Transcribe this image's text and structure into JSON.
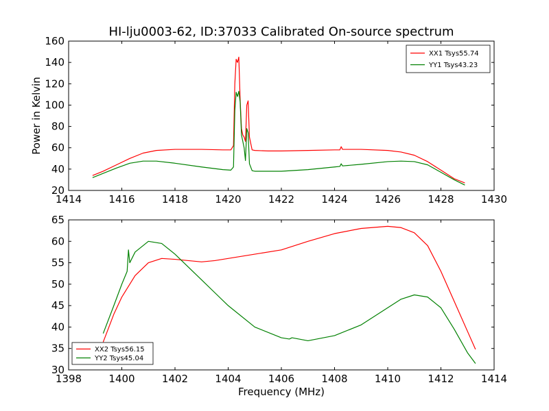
{
  "title": "HI-lju0003-62, ID:37033 Calibrated On-source spectrum",
  "chart_data": [
    {
      "type": "line",
      "ylabel": "Power in Kelvin",
      "xlabel": "",
      "xlim": [
        1414,
        1430
      ],
      "ylim": [
        20,
        160
      ],
      "xticks": [
        "1414",
        "1416",
        "1418",
        "1420",
        "1422",
        "1424",
        "1426",
        "1428",
        "1430"
      ],
      "yticks": [
        "20",
        "40",
        "60",
        "80",
        "100",
        "120",
        "140",
        "160"
      ],
      "legend_position": "top-right",
      "series": [
        {
          "name": "XX1 Tsys55.74",
          "color": "#ff0000",
          "x": [
            1414.9,
            1415.3,
            1415.8,
            1416.3,
            1416.8,
            1417.3,
            1418.0,
            1419.0,
            1419.8,
            1420.1,
            1420.2,
            1420.25,
            1420.3,
            1420.35,
            1420.4,
            1420.45,
            1420.5,
            1420.55,
            1420.6,
            1420.65,
            1420.7,
            1420.75,
            1420.8,
            1420.9,
            1421.0,
            1421.5,
            1422.0,
            1423.0,
            1424.0,
            1424.2,
            1424.25,
            1424.3,
            1425.0,
            1426.0,
            1426.5,
            1427.0,
            1427.5,
            1428.0,
            1428.5,
            1428.9
          ],
          "y": [
            34,
            38,
            44,
            50,
            55,
            57.5,
            58.5,
            58.5,
            58,
            58,
            62,
            120,
            143,
            140,
            145,
            105,
            78,
            72,
            70,
            66,
            100,
            104,
            70,
            58,
            57.5,
            57,
            57,
            57.5,
            58,
            58,
            61,
            58.5,
            58.5,
            57.5,
            56,
            53,
            47,
            39,
            31,
            27
          ]
        },
        {
          "name": "YY1 Tsys43.23",
          "color": "#008000",
          "x": [
            1414.9,
            1415.3,
            1415.8,
            1416.3,
            1416.8,
            1417.3,
            1418.0,
            1419.0,
            1419.8,
            1420.1,
            1420.2,
            1420.25,
            1420.3,
            1420.35,
            1420.4,
            1420.45,
            1420.5,
            1420.55,
            1420.6,
            1420.65,
            1420.7,
            1420.75,
            1420.8,
            1420.9,
            1421.0,
            1421.5,
            1422.0,
            1423.0,
            1424.0,
            1424.2,
            1424.25,
            1424.3,
            1425.0,
            1426.0,
            1426.5,
            1427.0,
            1427.5,
            1428.0,
            1428.5,
            1428.9
          ],
          "y": [
            32,
            36,
            41,
            45.5,
            47.5,
            47.5,
            45.5,
            42,
            39.5,
            39,
            42,
            95,
            112,
            108,
            113,
            103,
            72,
            66,
            60,
            48,
            78,
            74,
            45,
            38.5,
            38,
            38,
            38,
            39.5,
            42,
            42.5,
            45,
            43,
            44.5,
            47,
            47.5,
            47,
            44,
            37,
            30,
            25
          ]
        }
      ]
    },
    {
      "type": "line",
      "ylabel": "",
      "xlabel": "Frequency (MHz)",
      "xlim": [
        1398,
        1414
      ],
      "ylim": [
        30,
        65
      ],
      "xticks": [
        "1398",
        "1400",
        "1402",
        "1404",
        "1406",
        "1408",
        "1410",
        "1412",
        "1414"
      ],
      "yticks": [
        "30",
        "35",
        "40",
        "45",
        "50",
        "55",
        "60",
        "65"
      ],
      "legend_position": "bottom-left",
      "series": [
        {
          "name": "XX2 Tsys56.15",
          "color": "#ff0000",
          "x": [
            1399.3,
            1399.7,
            1400.0,
            1400.5,
            1401.0,
            1401.5,
            1402.0,
            1402.5,
            1403.0,
            1403.5,
            1404.0,
            1405.0,
            1406.0,
            1407.0,
            1408.0,
            1409.0,
            1410.0,
            1410.5,
            1411.0,
            1411.5,
            1412.0,
            1412.5,
            1413.0,
            1413.3
          ],
          "y": [
            36.5,
            43,
            47,
            52,
            55,
            56,
            55.8,
            55.5,
            55.2,
            55.5,
            56,
            57,
            58,
            60,
            61.8,
            63,
            63.5,
            63.2,
            62,
            59,
            53,
            46,
            39,
            34.8
          ]
        },
        {
          "name": "YY2 Tsys45.04",
          "color": "#008000",
          "x": [
            1399.3,
            1399.7,
            1400.0,
            1400.2,
            1400.25,
            1400.3,
            1400.5,
            1401.0,
            1401.5,
            1402.0,
            1402.5,
            1403.0,
            1403.5,
            1404.0,
            1405.0,
            1406.0,
            1406.3,
            1406.4,
            1407.0,
            1408.0,
            1409.0,
            1410.0,
            1410.5,
            1411.0,
            1411.5,
            1412.0,
            1412.5,
            1413.0,
            1413.3
          ],
          "y": [
            38.5,
            45,
            50,
            53,
            58,
            55,
            57.5,
            60,
            59.5,
            57,
            54,
            51,
            48,
            45,
            40,
            37.5,
            37.2,
            37.5,
            36.8,
            38,
            40.5,
            44.5,
            46.5,
            47.5,
            47,
            44.5,
            39.5,
            34,
            31.5
          ]
        }
      ]
    }
  ]
}
